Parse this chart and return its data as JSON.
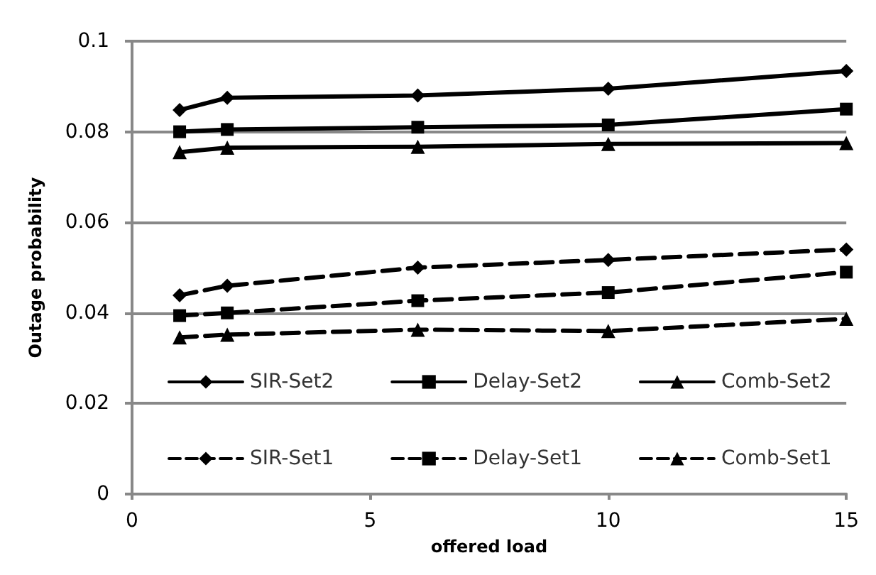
{
  "chart_data": {
    "type": "line",
    "xlabel": "offered load",
    "ylabel": "Outage probability",
    "x": [
      1,
      2,
      6,
      10,
      15
    ],
    "series": [
      {
        "name": "SIR-Set2",
        "color": "#000000",
        "marker": "diamond",
        "line_style": "solid",
        "values": [
          0.0848,
          0.0875,
          0.088,
          0.0895,
          0.0934
        ]
      },
      {
        "name": "Delay-Set2",
        "color": "#000000",
        "marker": "square",
        "line_style": "solid",
        "values": [
          0.08,
          0.0805,
          0.081,
          0.0815,
          0.085
        ]
      },
      {
        "name": "Comb-Set2",
        "color": "#000000",
        "marker": "triangle",
        "line_style": "solid",
        "values": [
          0.0755,
          0.0765,
          0.0767,
          0.0773,
          0.0775
        ]
      },
      {
        "name": "SIR-Set1",
        "color": "#000000",
        "marker": "diamond",
        "line_style": "dashed",
        "values": [
          0.0439,
          0.046,
          0.05,
          0.0517,
          0.054
        ]
      },
      {
        "name": "Delay-Set1",
        "color": "#000000",
        "marker": "square",
        "line_style": "dashed",
        "values": [
          0.0394,
          0.04,
          0.0427,
          0.0445,
          0.049
        ]
      },
      {
        "name": "Comb-Set1",
        "color": "#000000",
        "marker": "triangle",
        "line_style": "dashed",
        "values": [
          0.0346,
          0.0352,
          0.0363,
          0.036,
          0.0387
        ]
      }
    ],
    "xlim": [
      0,
      15
    ],
    "xticks": [
      0,
      5,
      10,
      15
    ],
    "ylim": [
      0,
      0.1
    ],
    "yticks": [
      0,
      0.02,
      0.04,
      0.06,
      0.08,
      0.1
    ],
    "grid": "y",
    "legend": "bottom"
  }
}
